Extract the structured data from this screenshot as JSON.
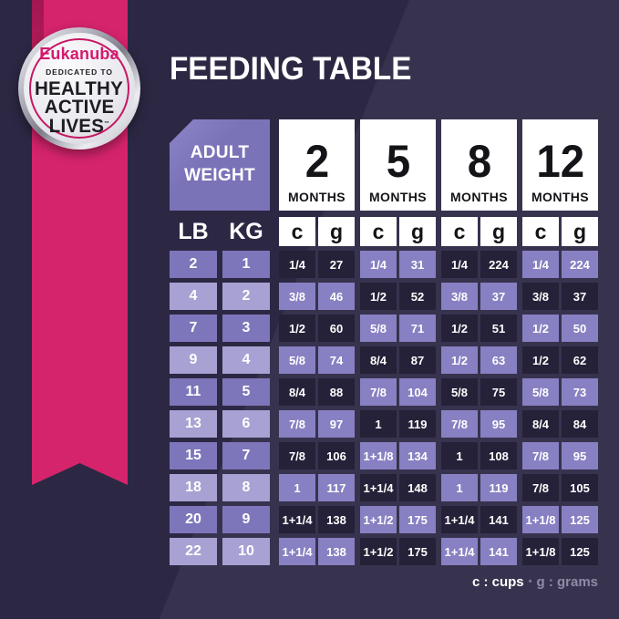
{
  "header": {
    "title": "FEEDING TABLE"
  },
  "badge": {
    "brand": "Eukanuba",
    "tagline": "DEDICATED TO",
    "line1": "HEALTHY",
    "line2": "ACTIVE",
    "line3": "LIVES",
    "trademark": "™"
  },
  "table": {
    "corner_line1": "ADULT",
    "corner_line2": "WEIGHT",
    "months": [
      {
        "number": "2",
        "label": "MONTHS"
      },
      {
        "number": "5",
        "label": "MONTHS"
      },
      {
        "number": "8",
        "label": "MONTHS"
      },
      {
        "number": "12",
        "label": "MONTHS"
      }
    ],
    "unit_c": "c",
    "unit_g": "g",
    "weight_headers": [
      "LB",
      "KG"
    ],
    "rows": [
      {
        "lb": "2",
        "kg": "1",
        "values": [
          [
            "1/4",
            "27"
          ],
          [
            "1/4",
            "31"
          ],
          [
            "1/4",
            "224"
          ],
          [
            "1/4",
            "224"
          ]
        ]
      },
      {
        "lb": "4",
        "kg": "2",
        "values": [
          [
            "3/8",
            "46"
          ],
          [
            "1/2",
            "52"
          ],
          [
            "3/8",
            "37"
          ],
          [
            "3/8",
            "37"
          ]
        ]
      },
      {
        "lb": "7",
        "kg": "3",
        "values": [
          [
            "1/2",
            "60"
          ],
          [
            "5/8",
            "71"
          ],
          [
            "1/2",
            "51"
          ],
          [
            "1/2",
            "50"
          ]
        ]
      },
      {
        "lb": "9",
        "kg": "4",
        "values": [
          [
            "5/8",
            "74"
          ],
          [
            "8/4",
            "87"
          ],
          [
            "1/2",
            "63"
          ],
          [
            "1/2",
            "62"
          ]
        ]
      },
      {
        "lb": "11",
        "kg": "5",
        "values": [
          [
            "8/4",
            "88"
          ],
          [
            "7/8",
            "104"
          ],
          [
            "5/8",
            "75"
          ],
          [
            "5/8",
            "73"
          ]
        ]
      },
      {
        "lb": "13",
        "kg": "6",
        "values": [
          [
            "7/8",
            "97"
          ],
          [
            "1",
            "119"
          ],
          [
            "7/8",
            "95"
          ],
          [
            "8/4",
            "84"
          ]
        ]
      },
      {
        "lb": "15",
        "kg": "7",
        "values": [
          [
            "7/8",
            "106"
          ],
          [
            "1+1/8",
            "134"
          ],
          [
            "1",
            "108"
          ],
          [
            "7/8",
            "95"
          ]
        ]
      },
      {
        "lb": "18",
        "kg": "8",
        "values": [
          [
            "1",
            "117"
          ],
          [
            "1+1/4",
            "148"
          ],
          [
            "1",
            "119"
          ],
          [
            "7/8",
            "105"
          ]
        ]
      },
      {
        "lb": "20",
        "kg": "9",
        "values": [
          [
            "1+1/4",
            "138"
          ],
          [
            "1+1/2",
            "175"
          ],
          [
            "1+1/4",
            "141"
          ],
          [
            "1+1/8",
            "125"
          ]
        ]
      },
      {
        "lb": "22",
        "kg": "10",
        "values": [
          [
            "1+1/4",
            "138"
          ],
          [
            "1+1/2",
            "175"
          ],
          [
            "1+1/4",
            "141"
          ],
          [
            "1+1/8",
            "125"
          ]
        ]
      }
    ]
  },
  "legend": {
    "cups": "c : cups",
    "separator": "•",
    "grams": "g : grams"
  },
  "colors": {
    "background": "#2c2844",
    "ribbon_pink": "#d6246c",
    "brand_pink": "#d41a6e",
    "header_purple": "#7b73b8",
    "cell_purple": "#8780c2",
    "cell_dark": "#242138",
    "weight_cell_medium": "#7d76ba",
    "weight_cell_light": "#a8a1d3",
    "white": "#ffffff",
    "legend_gray": "#8e8ba6"
  },
  "chart_data": {
    "type": "table",
    "title": "FEEDING TABLE",
    "row_header_units": [
      "LB",
      "KG"
    ],
    "column_groups": [
      "2 MONTHS",
      "5 MONTHS",
      "8 MONTHS",
      "12 MONTHS"
    ],
    "column_units_per_group": [
      "c (cups)",
      "g (grams)"
    ],
    "adult_weight_lb": [
      2,
      4,
      7,
      9,
      11,
      13,
      15,
      18,
      20,
      22
    ],
    "adult_weight_kg": [
      1,
      2,
      3,
      4,
      5,
      6,
      7,
      8,
      9,
      10
    ],
    "series": [
      {
        "name": "2 months cups",
        "values": [
          "1/4",
          "3/8",
          "1/2",
          "5/8",
          "8/4",
          "7/8",
          "7/8",
          "1",
          "1+1/4",
          "1+1/4"
        ]
      },
      {
        "name": "2 months grams",
        "values": [
          27,
          46,
          60,
          74,
          88,
          97,
          106,
          117,
          138,
          138
        ]
      },
      {
        "name": "5 months cups",
        "values": [
          "1/4",
          "1/2",
          "5/8",
          "8/4",
          "7/8",
          "1",
          "1+1/8",
          "1+1/4",
          "1+1/2",
          "1+1/2"
        ]
      },
      {
        "name": "5 months grams",
        "values": [
          31,
          52,
          71,
          87,
          104,
          119,
          134,
          148,
          175,
          175
        ]
      },
      {
        "name": "8 months cups",
        "values": [
          "1/4",
          "3/8",
          "1/2",
          "1/2",
          "5/8",
          "7/8",
          "1",
          "1",
          "1+1/4",
          "1+1/4"
        ]
      },
      {
        "name": "8 months grams",
        "values": [
          224,
          37,
          51,
          63,
          75,
          95,
          108,
          119,
          141,
          141
        ]
      },
      {
        "name": "12 months cups",
        "values": [
          "1/4",
          "3/8",
          "1/2",
          "1/2",
          "5/8",
          "8/4",
          "7/8",
          "7/8",
          "1+1/8",
          "1+1/8"
        ]
      },
      {
        "name": "12 months grams",
        "values": [
          224,
          37,
          50,
          62,
          73,
          84,
          95,
          105,
          125,
          125
        ]
      }
    ],
    "legend": "c : cups • g : grams",
    "layout": "checkerboard cell shading alternating dark-navy and purple per row and per month group"
  }
}
